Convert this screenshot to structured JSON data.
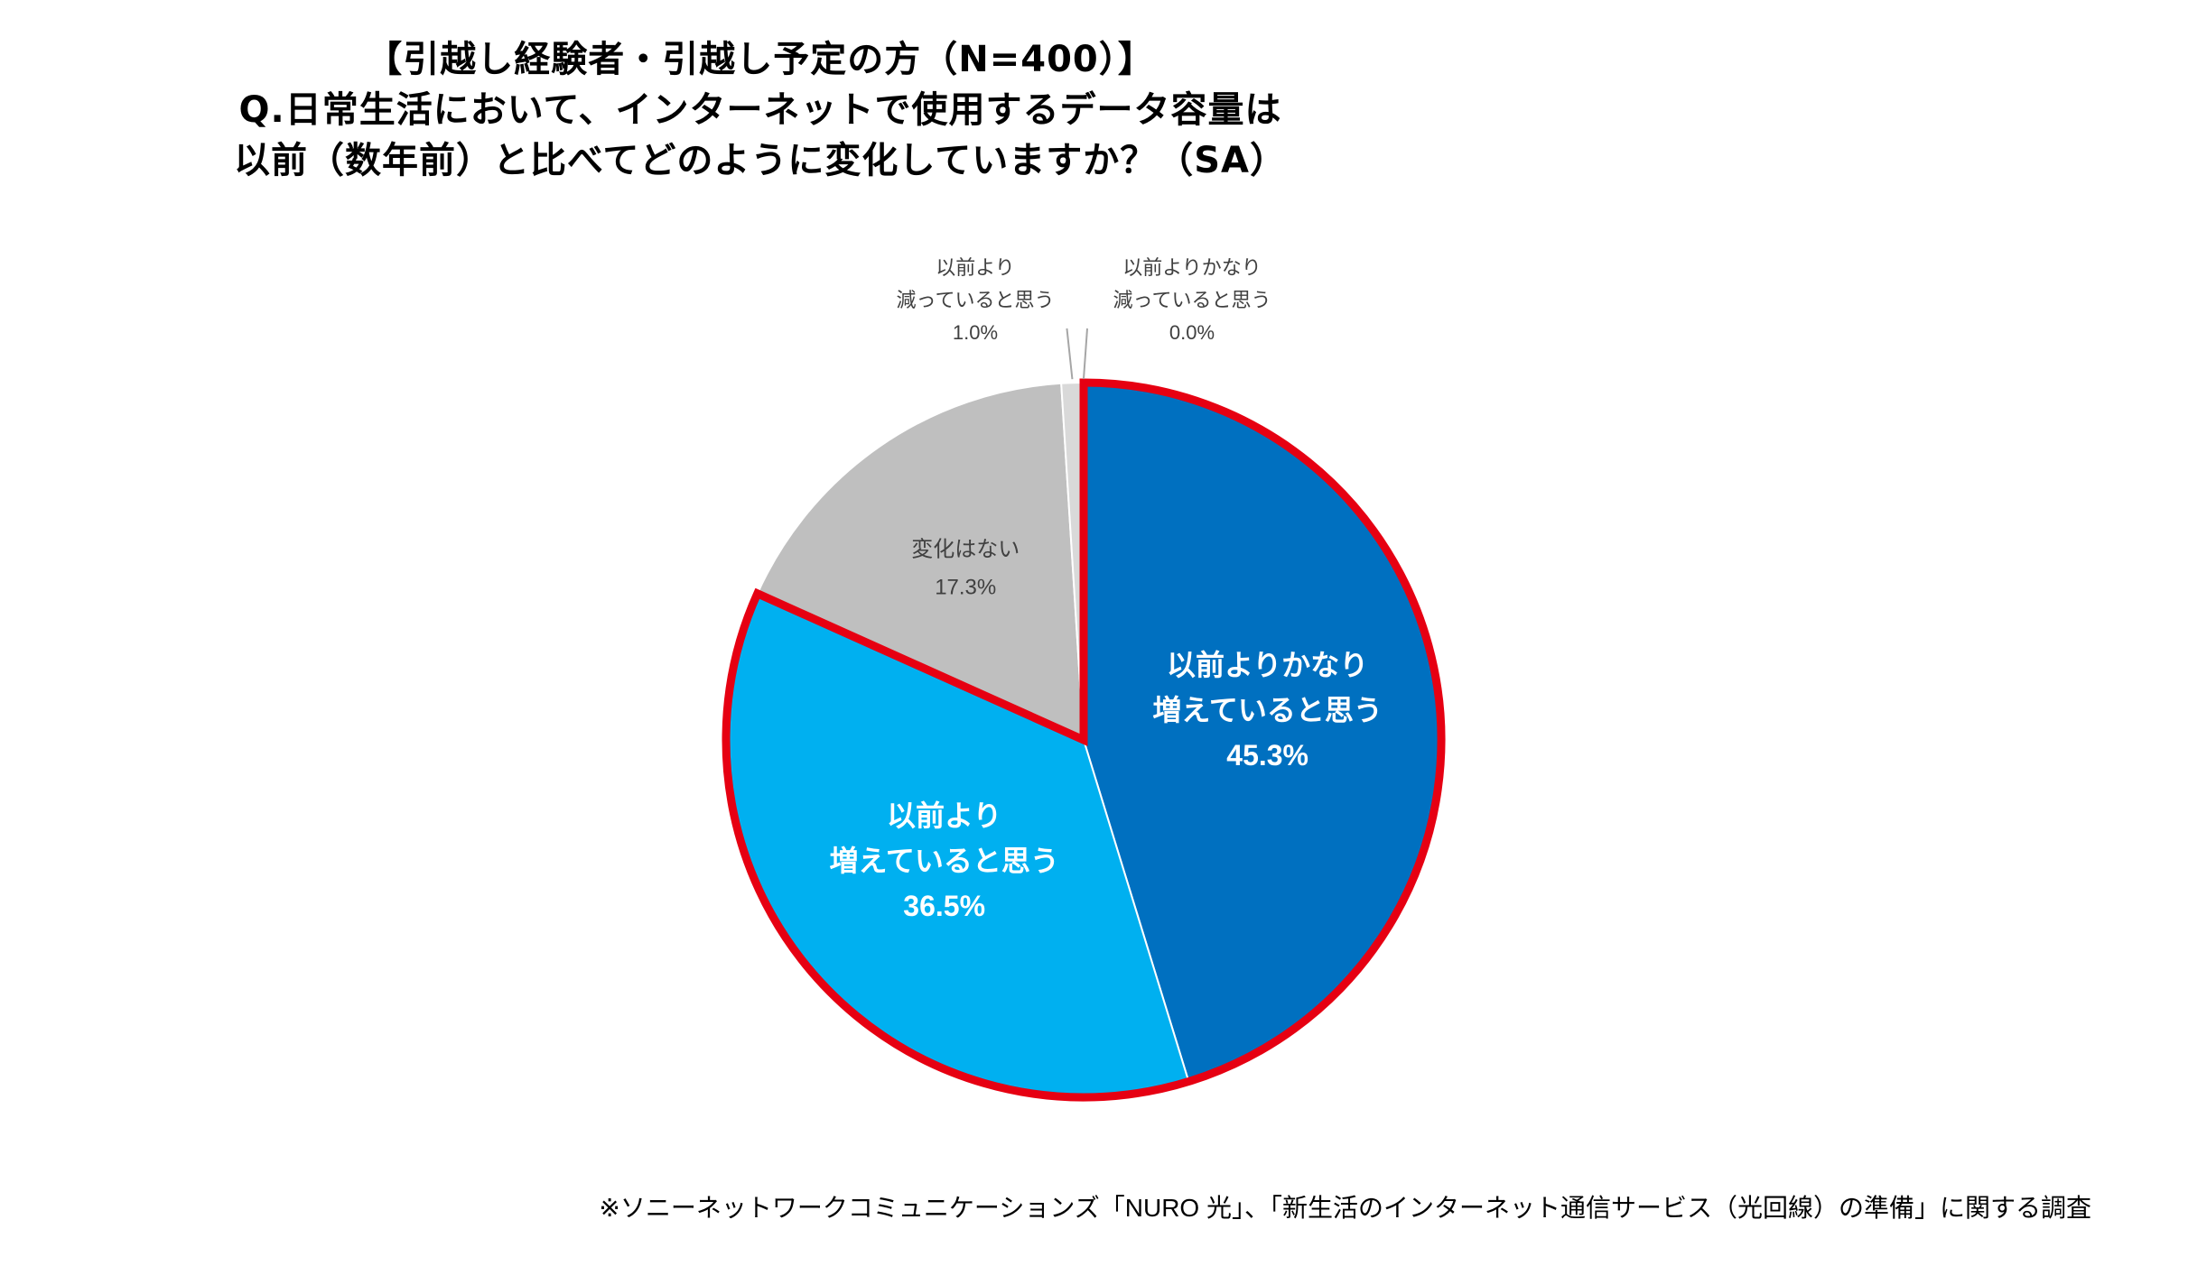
{
  "title": {
    "line1": "【引越し経験者・引越し予定の方（N=400）】",
    "line2": "Q.日常生活において、インターネットで使用するデータ容量は",
    "line3": "以前（数年前）と比べてどのように変化していますか？（SA）"
  },
  "chart_data": {
    "type": "pie",
    "start": "12 o'clock, clockwise",
    "slices": [
      {
        "label_lines": [
          "以前よりかなり",
          "増えていると思う"
        ],
        "value_label": "45.3%",
        "value": 45.3,
        "color": "#0070C0",
        "text_color": "#FFFFFF",
        "label_position": "inside",
        "highlighted": true
      },
      {
        "label_lines": [
          "以前より",
          "増えていると思う"
        ],
        "value_label": "36.5%",
        "value": 36.5,
        "color": "#00B0F0",
        "text_color": "#FFFFFF",
        "label_position": "inside",
        "highlighted": true
      },
      {
        "label_lines": [
          "変化はない"
        ],
        "value_label": "17.3%",
        "value": 17.3,
        "color": "#BFBFBF",
        "text_color": "#404040",
        "label_position": "inside",
        "highlighted": false
      },
      {
        "label_lines": [
          "以前より",
          "減っていると思う"
        ],
        "value_label": "1.0%",
        "value": 1.0,
        "color": "#D9D9D9",
        "text_color": "#404040",
        "label_position": "outside-left",
        "highlighted": false
      },
      {
        "label_lines": [
          "以前よりかなり",
          "減っていると思う"
        ],
        "value_label": "0.0%",
        "value": 0.0,
        "color": "#A6A6A6",
        "text_color": "#404040",
        "label_position": "outside-right",
        "highlighted": false
      }
    ],
    "highlight_color": "#E60012",
    "legend": "none"
  },
  "footnote": "※ソニーネットワークコミュニケーションズ「NURO 光」、「新生活のインターネット通信サービス（光回線）の準備」に関する調査"
}
